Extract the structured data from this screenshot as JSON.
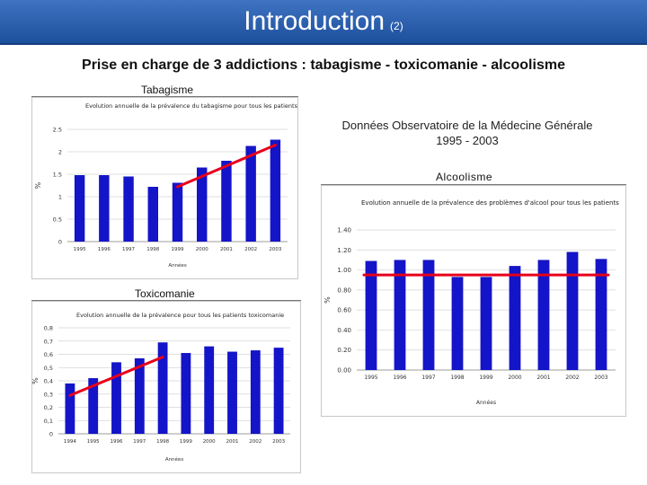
{
  "header": {
    "title": "Introduction",
    "suffix": "(2)"
  },
  "subtitle": "Prise en charge de 3 addictions : tabagisme - toxicomanie - alcoolisme",
  "labels": {
    "tabagisme": "Tabagisme",
    "toxicomanie": "Toxicomanie",
    "alcoolisme": "Alcoolisme"
  },
  "source": {
    "line1": "Données Observatoire de la Médecine Générale",
    "line2": "1995 - 2003"
  },
  "colors": {
    "bar": "#1414c8",
    "trend": "#e8001a",
    "banner": "#2a5fae"
  },
  "chart_data": [
    {
      "id": "tabagisme",
      "type": "bar",
      "title": "Evolution annuelle de la prévalence du tabagisme pour tous les patients",
      "xlabel": "Années",
      "ylabel": "%",
      "categories": [
        "1995",
        "1996",
        "1997",
        "1998",
        "1999",
        "2000",
        "2001",
        "2002",
        "2003"
      ],
      "values": [
        1.48,
        1.48,
        1.45,
        1.22,
        1.31,
        1.65,
        1.8,
        2.13,
        2.27
      ],
      "ylim": [
        0,
        2.5
      ],
      "yticks": [
        "0",
        "0.5",
        "1",
        "1.5",
        "2",
        "2.5"
      ],
      "trend": {
        "from_index": 4,
        "to_index": 8,
        "from_value": 1.22,
        "to_value": 2.15
      }
    },
    {
      "id": "toxicomanie",
      "type": "bar",
      "title": "Evolution annuelle de la prévalence pour tous les patients toxicomanie",
      "xlabel": "Années",
      "ylabel": "%",
      "categories": [
        "1994",
        "1995",
        "1996",
        "1997",
        "1998",
        "1999",
        "2000",
        "2001",
        "2002",
        "2003"
      ],
      "values": [
        0.38,
        0.42,
        0.54,
        0.57,
        0.69,
        0.61,
        0.66,
        0.62,
        0.63,
        0.65
      ],
      "ylim": [
        0,
        0.8
      ],
      "yticks": [
        "0",
        "0,1",
        "0,2",
        "0,3",
        "0,4",
        "0,5",
        "0,6",
        "0,7",
        "0,8"
      ],
      "trend": {
        "from_index": 0,
        "to_index": 4,
        "from_value": 0.29,
        "to_value": 0.58
      }
    },
    {
      "id": "alcoolisme",
      "type": "bar",
      "title": "Evolution annuelle de la prévalence des problèmes d'alcool pour tous les patients",
      "xlabel": "Années",
      "ylabel": "%",
      "categories": [
        "1995",
        "1996",
        "1997",
        "1998",
        "1999",
        "2000",
        "2001",
        "2002",
        "2003"
      ],
      "values": [
        1.09,
        1.1,
        1.1,
        0.93,
        0.93,
        1.04,
        1.1,
        1.18,
        1.11
      ],
      "ylim": [
        0,
        1.4
      ],
      "yticks": [
        "0.00",
        "0.20",
        "0.40",
        "0.60",
        "0.80",
        "1.00",
        "1.20",
        "1.40"
      ],
      "trend": {
        "from_index": 0,
        "to_index": 8,
        "from_value": 0.95,
        "to_value": 0.95
      }
    }
  ]
}
